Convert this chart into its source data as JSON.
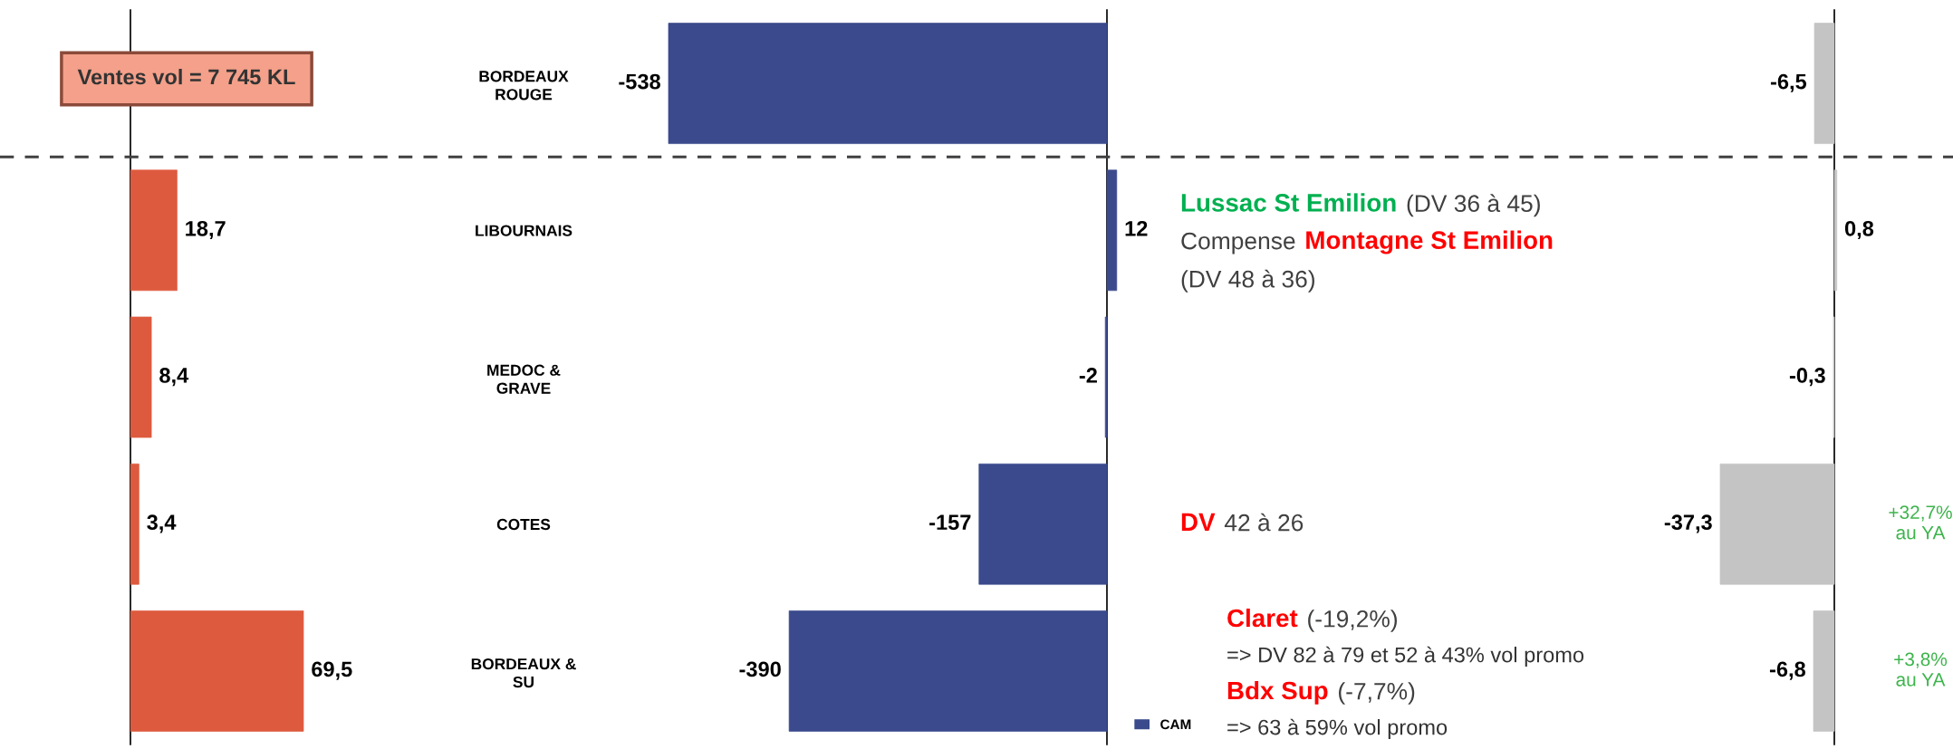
{
  "chart_data": [
    {
      "type": "bar",
      "orientation": "horizontal",
      "categories": [
        "BORDEAUX\nROUGE",
        "LIBOURNAIS",
        "MEDOC &\nGRAVE",
        "COTES",
        "BORDEAUX &\nSU"
      ],
      "values": [
        null,
        18.7,
        8.4,
        3.4,
        69.5
      ],
      "value_labels": [
        null,
        "18,7",
        "8,4",
        "3,4",
        "69,5"
      ],
      "color": "#dd5a3e",
      "tick_labels": "y",
      "grid": false,
      "annotations": [
        "Ventes vol = 7 745 KL"
      ]
    },
    {
      "type": "bar",
      "orientation": "horizontal",
      "categories": [
        null,
        null,
        null,
        null,
        null
      ],
      "series": [
        {
          "name": "CAM",
          "color": "#3a4a8c",
          "values": [
            -538,
            12,
            -2,
            -157,
            -390
          ]
        }
      ],
      "data_labels": true,
      "tick_labels": false,
      "grid": false,
      "legend": "bottom right",
      "annotations": [
        "Lussac St Emilion",
        "(DV 36 à 45)",
        "Compense",
        "Montagne St Emilion",
        "(DV 48 à 36)",
        "DV",
        "42 à 26",
        "Claret",
        "(-19,2%)",
        "=> DV 82 à 79 et 52 à 43% vol promo",
        "Bdx Sup",
        "(-7,7%)",
        "=> 63 à 59% vol promo"
      ]
    },
    {
      "type": "bar",
      "orientation": "horizontal",
      "categories": [
        null,
        null,
        null,
        null,
        null
      ],
      "values": [
        -6.5,
        0.8,
        -0.3,
        -37.3,
        -6.8
      ],
      "value_labels": [
        "-6,5",
        "0,8",
        "-0,3",
        "-37,3",
        "-6,8"
      ],
      "color": "#c4c4c4",
      "tick_labels": false,
      "grid": false,
      "annotations": [
        "+32,7%\nau YA",
        "+3,8%\nau YA"
      ]
    }
  ]
}
